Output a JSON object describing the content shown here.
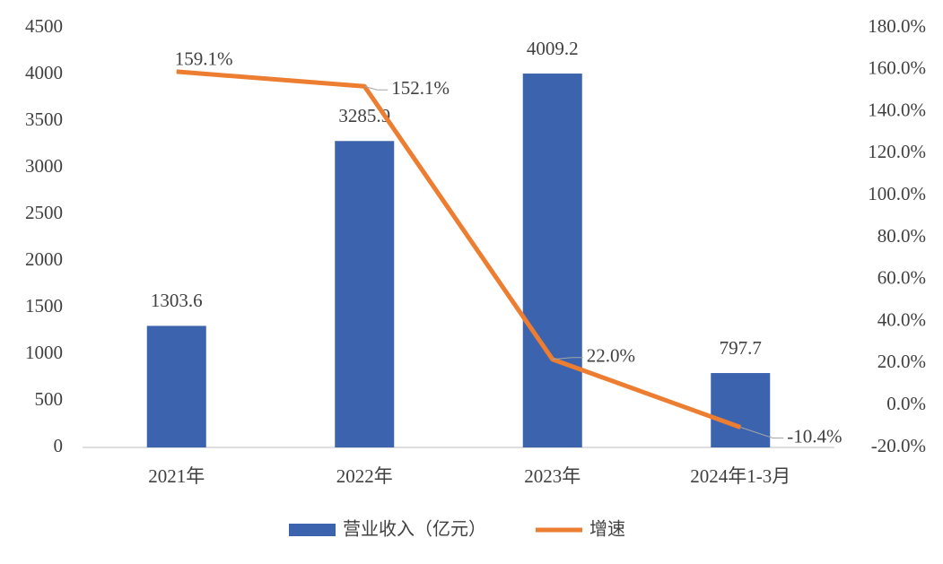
{
  "chart_data": {
    "type": "bar",
    "categories": [
      "2021年",
      "2022年",
      "2023年",
      "2024年1-3月"
    ],
    "series": [
      {
        "name": "营业收入（亿元）",
        "type": "bar",
        "color": "#3c63ad",
        "values": [
          1303.6,
          3285.9,
          4009.2,
          797.7
        ]
      },
      {
        "name": "增速",
        "type": "line",
        "axis": "y2",
        "color": "#ed7d31",
        "values": [
          159.1,
          152.1,
          22.0,
          -10.4
        ],
        "value_labels": [
          "159.1%",
          "152.1%",
          "22.0%",
          "-10.4%"
        ]
      }
    ],
    "ylim": [
      0,
      4500
    ],
    "yticks": [
      0,
      500,
      1000,
      1500,
      2000,
      2500,
      3000,
      3500,
      4000,
      4500
    ],
    "y2lim": [
      -20,
      180
    ],
    "y2ticks": [
      {
        "value": -20,
        "label": "-20.0%"
      },
      {
        "value": 0,
        "label": "0.0%"
      },
      {
        "value": 20,
        "label": "20.0%"
      },
      {
        "value": 40,
        "label": "40.0%"
      },
      {
        "value": 60,
        "label": "60.0%"
      },
      {
        "value": 80,
        "label": "80.0%"
      },
      {
        "value": 100,
        "label": "100.0%"
      },
      {
        "value": 120,
        "label": "120.0%"
      },
      {
        "value": 140,
        "label": "140.0%"
      },
      {
        "value": 160,
        "label": "160.0%"
      },
      {
        "value": 180,
        "label": "180.0%"
      }
    ],
    "grid": false,
    "legend": "bottom"
  }
}
